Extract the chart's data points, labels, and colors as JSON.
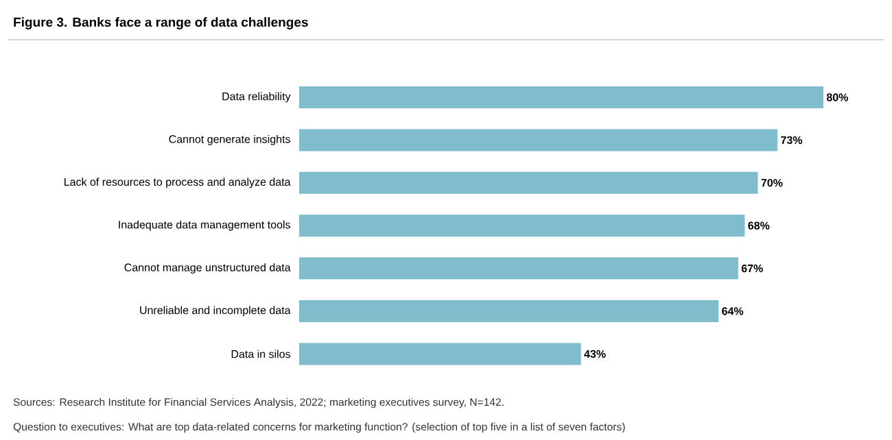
{
  "chart_data": {
    "type": "bar",
    "orientation": "horizontal",
    "title": "Figure 3. Banks face a range of data challenges",
    "categories": [
      "Data reliability",
      "Cannot generate insights",
      "Lack of resources to process and analyze data",
      "Inadequate data management tools",
      "Cannot manage unstructured data",
      "Unreliable and incomplete data",
      "Data in silos"
    ],
    "values": [
      80,
      73,
      70,
      68,
      67,
      64,
      43
    ],
    "value_labels": [
      "80%",
      "73%",
      "70%",
      "68%",
      "67%",
      "64%",
      "43%"
    ],
    "color": "#7fbdcc",
    "annotations": [
      "Sources: Research Institute for Financial Services Analysis, 2022; marketing executives survey, N=142.",
      "Question to executives: What are top data-related concerns for marketing function? (selection of top five in a list of seven factors)"
    ]
  }
}
